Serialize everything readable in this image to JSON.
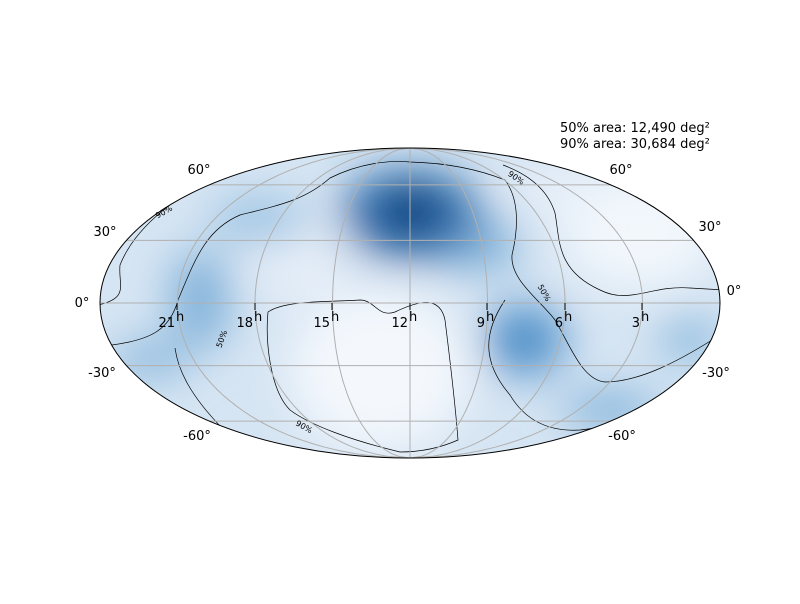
{
  "annotations": [
    "50% area: 12,490 deg²",
    "90% area: 30,684 deg²"
  ],
  "ra_unit": "h",
  "ra_labels": [
    "21",
    "18",
    "15",
    "12",
    "9",
    "6",
    "3"
  ],
  "dec_labels_left": [
    "60°",
    "30°",
    "0°",
    "-30°",
    "-60°"
  ],
  "dec_labels_right": [
    "60°",
    "30°",
    "0°",
    "-30°",
    "-60°"
  ],
  "contour_labels": [
    "90%",
    "90%",
    "90%",
    "50%",
    "50%"
  ]
}
